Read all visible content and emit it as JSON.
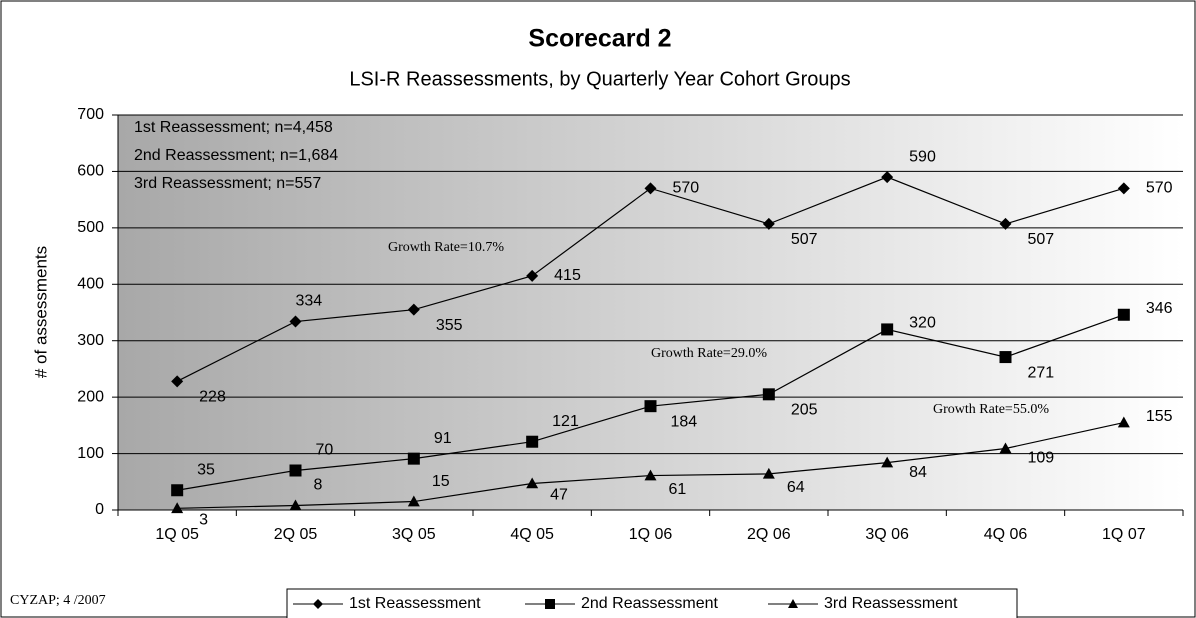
{
  "chart_data": {
    "type": "line",
    "title": "Scorecard 2",
    "subtitle": "LSI-R Reassessments, by Quarterly Year Cohort Groups",
    "y_label": "# of assessments",
    "categories": [
      "1Q 05",
      "2Q 05",
      "3Q 05",
      "4Q 05",
      "1Q 06",
      "2Q 06",
      "3Q 06",
      "4Q 06",
      "1Q 07"
    ],
    "series": [
      {
        "name": "1st Reassessment",
        "color": "#000000",
        "marker": "diamond",
        "values": [
          228,
          334,
          355,
          415,
          570,
          507,
          590,
          507,
          570
        ]
      },
      {
        "name": "2nd Reassessment",
        "color": "#000000",
        "marker": "square",
        "values": [
          35,
          70,
          91,
          121,
          184,
          205,
          320,
          271,
          346
        ]
      },
      {
        "name": "3rd Reassessment",
        "color": "#000000",
        "marker": "triangle",
        "values": [
          3,
          8,
          15,
          47,
          61,
          64,
          84,
          109,
          155
        ]
      }
    ],
    "ylim": [
      0,
      700
    ],
    "yticks": [
      0,
      100,
      200,
      300,
      400,
      500,
      600,
      700
    ],
    "grid": true,
    "legend": "bottom",
    "notes": [
      "1st Reassessment; n=4,458",
      "2nd Reassessment; n=1,684",
      "3rd Reassessment; n=557"
    ],
    "annotations": [
      "Growth Rate=10.7%",
      "Growth Rate=29.0%",
      "Growth Rate=55.0%"
    ],
    "footer": "CYZAP; 4 /2007"
  }
}
